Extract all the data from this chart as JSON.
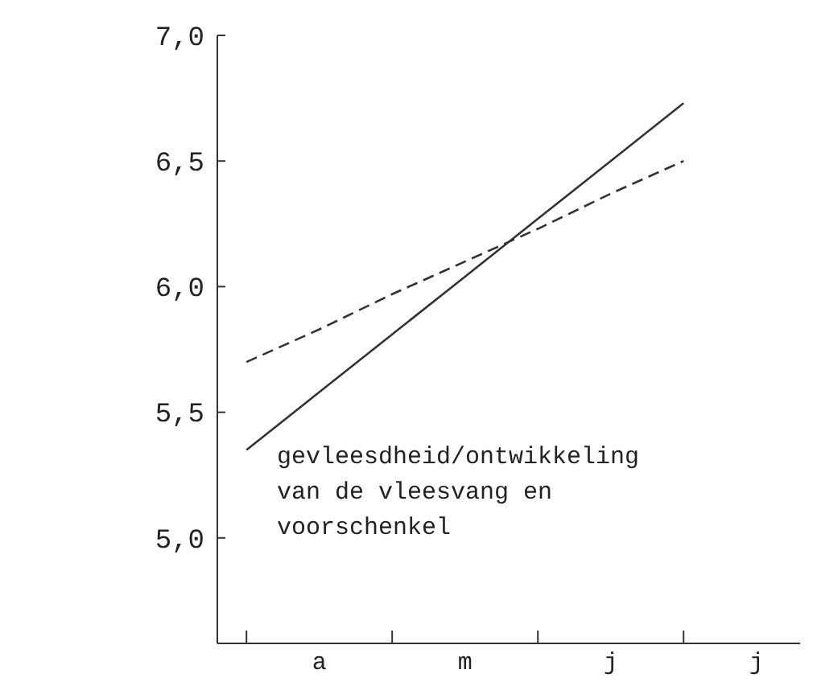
{
  "chart_data": {
    "type": "line",
    "categories": [
      null,
      "a",
      null,
      "m",
      null,
      "j",
      null,
      "j"
    ],
    "ylim": [
      4.58,
      7.0
    ],
    "yticks": [
      {
        "value": 5,
        "label": "5,0"
      },
      {
        "value": 5.5,
        "label": "5,5"
      },
      {
        "value": 6,
        "label": "6,0"
      },
      {
        "value": 6.5,
        "label": "6,5"
      },
      {
        "value": 7,
        "label": "7,0"
      }
    ],
    "series": [
      {
        "color": "#333333",
        "values": [
          5.35,
          5.58,
          5.81,
          6.04,
          6.27,
          6.5,
          6.73,
          null
        ],
        "line_style": "solid"
      },
      {
        "color": "#333333",
        "values": [
          5.7,
          5.83,
          5.97,
          6.1,
          6.23,
          6.37,
          6.5,
          null
        ],
        "line_style": "dashed"
      }
    ],
    "annotations": [
      "gevleesdheid/ontwikkeling\nvan de vleesvang en\nvoorschenkel"
    ],
    "grid": false,
    "marker": "none"
  }
}
